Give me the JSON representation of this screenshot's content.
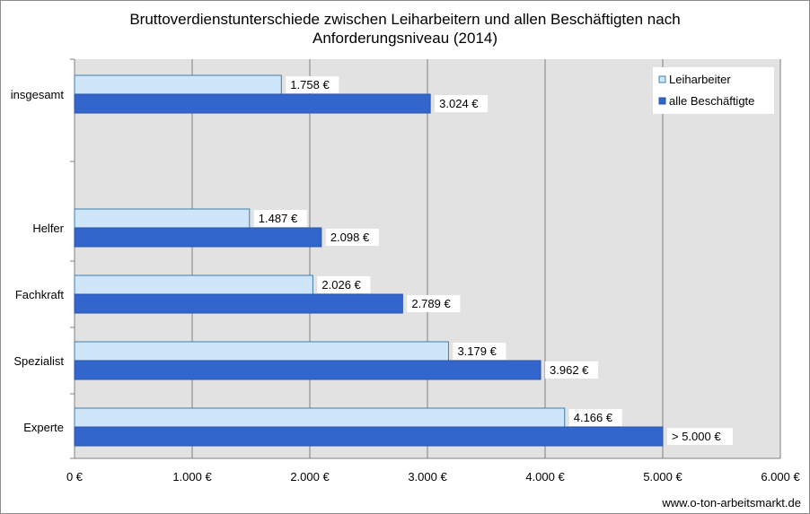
{
  "chart_data": {
    "type": "bar",
    "orientation": "horizontal",
    "title_lines": [
      "Bruttoverdienstunterschiede zwischen Leiharbeitern und allen  Beschäftigten nach",
      "Anforderungsniveau (2014)"
    ],
    "categories": [
      "insgesamt",
      "Helfer",
      "Fachkraft",
      "Spezialist",
      "Experte"
    ],
    "series": [
      {
        "name": "Leiharbeiter",
        "color": "#cfe5f9",
        "values": [
          1758,
          1487,
          2026,
          3179,
          4166
        ],
        "labels": [
          "1.758 €",
          "1.487 €",
          "2.026 €",
          "3.179 €",
          "4.166 €"
        ]
      },
      {
        "name": "alle Beschäftigte",
        "color": "#3366cc",
        "values": [
          3024,
          2098,
          2789,
          3962,
          5000
        ],
        "labels": [
          "3.024 €",
          "2.098 €",
          "2.789 €",
          "3.962 €",
          "> 5.000 €"
        ]
      }
    ],
    "xlim": [
      0,
      6000
    ],
    "x_ticks": [
      0,
      1000,
      2000,
      3000,
      4000,
      5000,
      6000
    ],
    "x_tick_labels": [
      "0 €",
      "1.000 €",
      "2.000 €",
      "3.000 €",
      "4.000 €",
      "5.000 €",
      "6.000 €"
    ],
    "grid": true,
    "legend_position": "top-right",
    "plot_background": "#e2e2e2",
    "source": "www.o-ton-arbeitsmarkt.de"
  }
}
